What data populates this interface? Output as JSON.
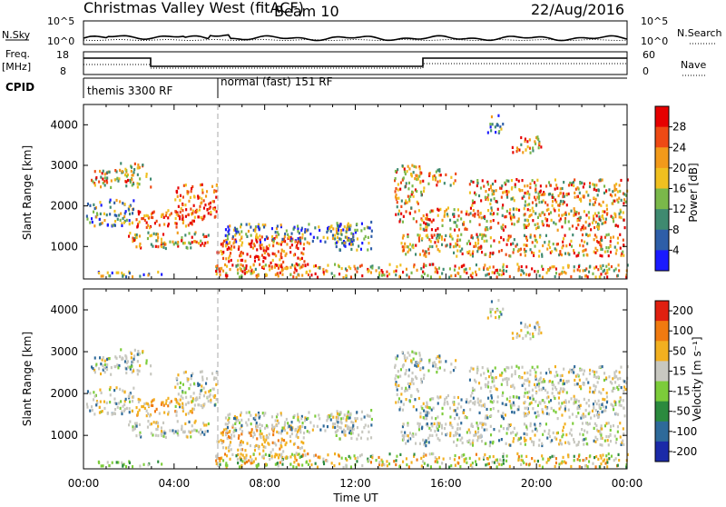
{
  "header": {
    "station": "Christmas Valley West (fitACF)",
    "beam": "Beam 10",
    "date": "22/Aug/2016"
  },
  "strip_labels": {
    "nsky": "N.Sky",
    "nsearch": "N.Search",
    "freq_line1": "Freq.",
    "freq_line2": "[MHz]",
    "nave": "Nave",
    "cpid": "CPID",
    "nsky_tick_hi": "10^5",
    "nsky_tick_lo": "10^0",
    "nsearch_tick_hi": "10^5",
    "nsearch_tick_lo": "10^0",
    "freq_tick_hi": "18",
    "freq_tick_lo": "8",
    "nave_tick_hi": "60",
    "nave_tick_lo": "0"
  },
  "cpid_segments": [
    {
      "label": "themis 3300 RF",
      "start_hour": 0
    },
    {
      "label": "normal (fast) 151 RF",
      "start_hour": 6
    }
  ],
  "chart_data": [
    {
      "type": "heatmap",
      "name": "power",
      "ylabel": "Slant Range [km]",
      "colorbar_label": "Power [dB]",
      "colorbar_ticks": [
        "4",
        "8",
        "12",
        "16",
        "20",
        "24",
        "28"
      ],
      "colorbar_range": [
        0,
        30
      ],
      "colorbar_colors": [
        "#1a1aff",
        "#2e5ea8",
        "#3f8a70",
        "#7ab84a",
        "#f0c020",
        "#f29a1a",
        "#ee4a14",
        "#e60000"
      ],
      "ylim": [
        200,
        4500
      ],
      "yticks": [
        1000,
        2000,
        3000,
        4000
      ],
      "xlim_hours": [
        0,
        24
      ],
      "grid": false
    },
    {
      "type": "heatmap",
      "name": "velocity",
      "ylabel": "Slant Range [km]",
      "colorbar_label": "Velocity [m s⁻¹]",
      "colorbar_ticks": [
        "200",
        "100",
        "50",
        "15",
        "-15",
        "-50",
        "-100",
        "-200"
      ],
      "colorbar_colors": [
        "#1b2aa8",
        "#2e6a9a",
        "#2b8a3e",
        "#7ccc3a",
        "#c8c8c0",
        "#f2b020",
        "#f07a10",
        "#e02010"
      ],
      "ylim": [
        200,
        4500
      ],
      "yticks": [
        1000,
        2000,
        3000,
        4000
      ],
      "xlim_hours": [
        0,
        24
      ],
      "xticks": [
        "00:00",
        "04:00",
        "08:00",
        "12:00",
        "16:00",
        "20:00",
        "00:00"
      ],
      "xlabel": "Time UT",
      "grid": false
    }
  ],
  "scatter_regions": [
    {
      "band": "upper-left",
      "t0": 0.2,
      "t1": 3.0,
      "r0": 2450,
      "r1": 2900,
      "pwr": "mix-orange",
      "vel": "gray"
    },
    {
      "band": "upper-mid",
      "t0": 1.5,
      "t1": 2.6,
      "r0": 2850,
      "r1": 3050,
      "pwr": "mix-orange",
      "vel": "gray"
    },
    {
      "band": "left-green",
      "t0": 0.1,
      "t1": 2.2,
      "r0": 1500,
      "r1": 2150,
      "pwr": "mix-green",
      "vel": "gray"
    },
    {
      "band": "red-block",
      "t0": 2.3,
      "t1": 4.9,
      "r0": 1450,
      "r1": 1900,
      "pwr": "red",
      "vel": "orange"
    },
    {
      "band": "red-rise",
      "t0": 4.0,
      "t1": 5.9,
      "r0": 1650,
      "r1": 2550,
      "pwr": "red",
      "vel": "gray"
    },
    {
      "band": "lower-left",
      "t0": 1.8,
      "t1": 5.5,
      "r0": 950,
      "r1": 1350,
      "pwr": "mix-orange",
      "vel": "gray"
    },
    {
      "band": "main-red",
      "t0": 5.8,
      "t1": 9.8,
      "r0": 450,
      "r1": 1250,
      "pwr": "red",
      "vel": "orange"
    },
    {
      "band": "green-stripe",
      "t0": 6.2,
      "t1": 12.0,
      "r0": 1050,
      "r1": 1550,
      "pwr": "mix-green",
      "vel": "gray"
    },
    {
      "band": "near-left",
      "t0": 0.1,
      "t1": 3.5,
      "r0": 250,
      "r1": 380,
      "pwr": "mix-green",
      "vel": "green"
    },
    {
      "band": "near-main",
      "t0": 5.8,
      "t1": 24.0,
      "r0": 230,
      "r1": 560,
      "pwr": "mix-orange",
      "vel": "mix-near"
    },
    {
      "band": "mid-17",
      "t0": 14.8,
      "t1": 24.0,
      "r0": 1400,
      "r1": 1950,
      "pwr": "mix-orange",
      "vel": "gray"
    },
    {
      "band": "lower-17",
      "t0": 14.0,
      "t1": 23.9,
      "r0": 750,
      "r1": 1300,
      "pwr": "mix-orange",
      "vel": "gray"
    },
    {
      "band": "arc-upper",
      "t0": 17.0,
      "t1": 24.0,
      "r0": 2000,
      "r1": 2650,
      "pwr": "mix-orange",
      "vel": "gray"
    },
    {
      "band": "arc-top",
      "t0": 18.8,
      "t1": 20.2,
      "r0": 3300,
      "r1": 3700,
      "pwr": "mix-orange",
      "vel": "gray"
    },
    {
      "band": "arc-high",
      "t0": 17.8,
      "t1": 18.5,
      "r0": 3800,
      "r1": 4250,
      "pwr": "mix-green",
      "vel": "gray"
    },
    {
      "band": "diag-14",
      "t0": 13.7,
      "t1": 15.0,
      "r0": 1600,
      "r1": 3000,
      "pwr": "mix-orange",
      "vel": "gray"
    },
    {
      "band": "pre-12",
      "t0": 11.1,
      "t1": 12.7,
      "r0": 900,
      "r1": 1600,
      "pwr": "mix-green",
      "vel": "gray"
    },
    {
      "band": "patch-15",
      "t0": 15.2,
      "t1": 16.4,
      "r0": 2500,
      "r1": 2900,
      "pwr": "mix-orange",
      "vel": "gray"
    }
  ]
}
